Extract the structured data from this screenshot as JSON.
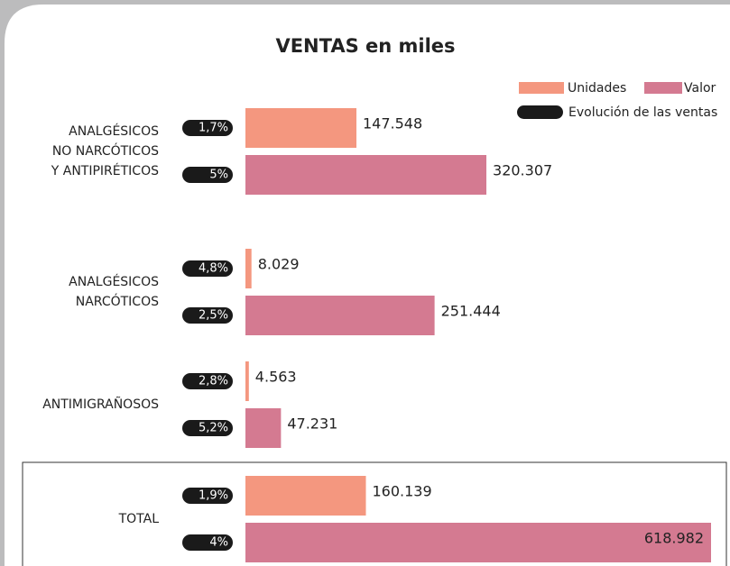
{
  "chart_data": {
    "type": "bar",
    "title": "VENTAS en miles",
    "categories": [
      [
        "ANALGÉSICOS",
        "NO NARCÓTICOS",
        "Y ANTIPIRÉTICOS"
      ],
      [
        "ANALGÉSICOS",
        "NARCÓTICOS"
      ],
      [
        "ANTIMIGRAÑOSOS"
      ],
      [
        "TOTAL"
      ]
    ],
    "series": [
      {
        "name": "Unidades",
        "color": "#f4977f",
        "values": [
          147548,
          8029,
          4563,
          160139
        ],
        "value_labels": [
          "147.548",
          "8.029",
          "4.563",
          "160.139"
        ],
        "growth": [
          1.7,
          4.8,
          2.8,
          1.9
        ],
        "growth_labels": [
          "1,7%",
          "4,8%",
          "2,8%",
          "1,9%"
        ]
      },
      {
        "name": "Valor",
        "color": "#d47a91",
        "values": [
          320307,
          251444,
          47231,
          618982
        ],
        "value_labels": [
          "320.307",
          "251.444",
          "47.231",
          "618.982"
        ],
        "growth": [
          5,
          2.5,
          5.2,
          4
        ],
        "growth_labels": [
          "5%",
          "2,5%",
          "5,2%",
          "4%"
        ]
      }
    ],
    "growth_legend": "Evolución de las ventas",
    "growth_color": "#1a1a1a"
  }
}
